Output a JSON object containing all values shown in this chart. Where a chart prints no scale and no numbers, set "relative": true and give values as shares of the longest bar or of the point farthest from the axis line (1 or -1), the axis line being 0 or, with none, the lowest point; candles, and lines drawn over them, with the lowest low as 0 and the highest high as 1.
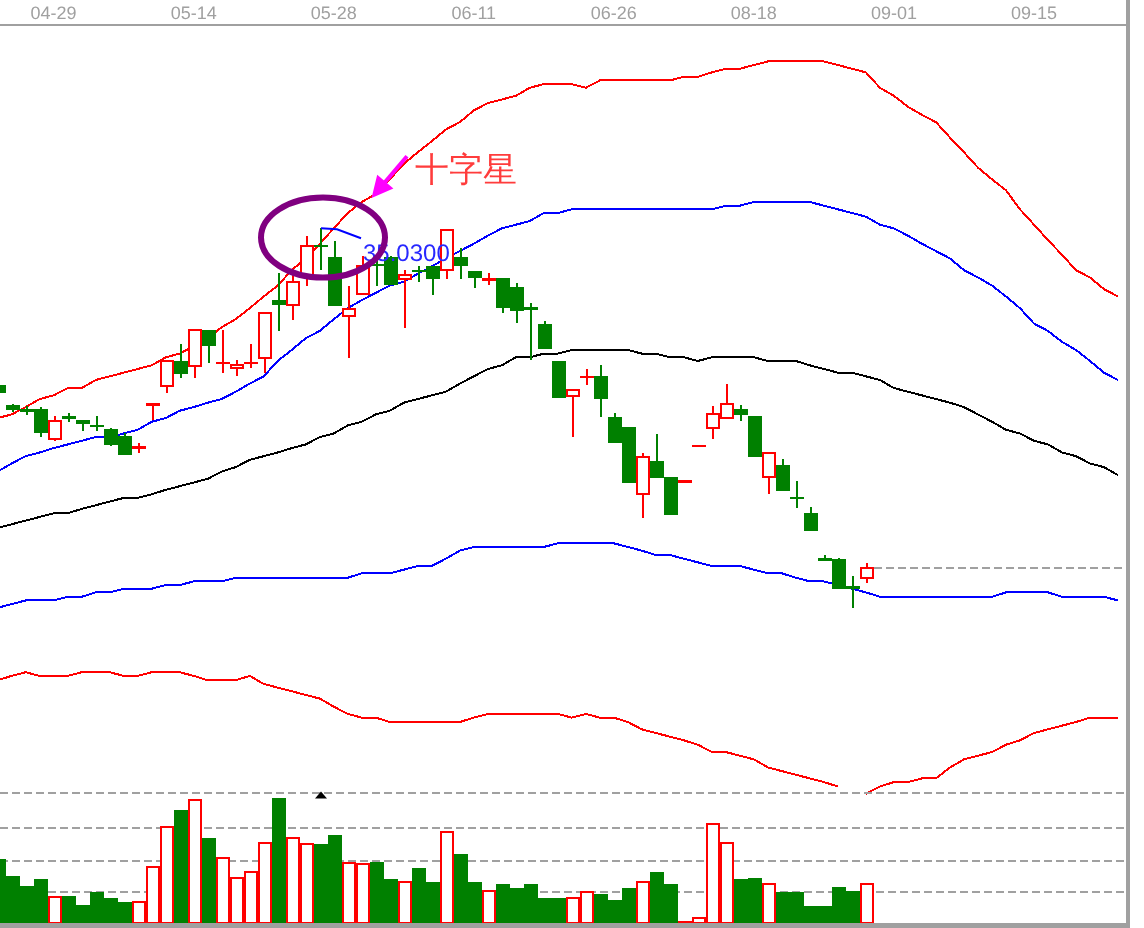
{
  "chart_data": [
    {
      "type": "candlestick",
      "relative": true,
      "tick_labels": "x",
      "categories": [
        null,
        null,
        null,
        null,
        "04-29",
        null,
        null,
        null,
        null,
        null,
        null,
        null,
        null,
        null,
        "05-14",
        null,
        null,
        null,
        null,
        null,
        null,
        null,
        null,
        null,
        "05-28",
        null,
        null,
        null,
        null,
        null,
        null,
        null,
        null,
        null,
        "06-11",
        null,
        null,
        null,
        null,
        null,
        null,
        null,
        null,
        null,
        "06-26",
        null,
        null,
        null,
        null,
        null,
        null,
        null,
        null,
        null,
        "08-18",
        null,
        null,
        null,
        null,
        null,
        null,
        null,
        null,
        null,
        "09-01",
        null,
        null,
        null,
        null,
        null,
        null,
        null,
        null,
        null,
        "09-15",
        null,
        null,
        null,
        null,
        null,
        null
      ],
      "ohlc": [
        [
          0.588,
          0.591,
          0.562,
          0.565
        ],
        [
          0.533,
          0.536,
          0.517,
          0.52
        ],
        [
          0.519,
          0.532,
          0.507,
          0.519
        ],
        [
          0.523,
          0.528,
          0.451,
          0.461
        ],
        [
          0.444,
          0.505,
          0.44,
          0.493
        ],
        [
          0.502,
          0.514,
          0.489,
          0.502
        ],
        [
          0.496,
          0.496,
          0.465,
          0.484
        ],
        [
          0.479,
          0.505,
          0.465,
          0.479
        ],
        [
          0.47,
          0.474,
          0.426,
          0.429
        ],
        [
          0.453,
          0.461,
          0.403,
          0.403
        ],
        [
          0.423,
          0.435,
          0.408,
          0.423
        ],
        [
          0.535,
          0.535,
          0.496,
          0.535
        ],
        [
          0.584,
          0.649,
          0.566,
          0.649
        ],
        [
          0.649,
          0.695,
          0.605,
          0.616
        ],
        [
          0.637,
          0.733,
          0.605,
          0.733
        ],
        [
          0.733,
          0.733,
          0.645,
          0.689
        ],
        [
          0.645,
          0.733,
          0.619,
          0.645
        ],
        [
          0.632,
          0.654,
          0.611,
          0.64
        ],
        [
          0.645,
          0.695,
          0.632,
          0.645
        ],
        [
          0.659,
          0.777,
          0.619,
          0.777
        ],
        [
          0.812,
          0.882,
          0.729,
          0.798
        ],
        [
          0.798,
          0.882,
          0.759,
          0.859
        ],
        [
          0.874,
          0.979,
          0.847,
          0.953
        ],
        [
          0.953,
          1,
          0.891,
          0.953
        ],
        [
          0.923,
          0.966,
          0.795,
          0.795
        ],
        [
          0.768,
          0.847,
          0.658,
          0.786
        ],
        [
          0.826,
          0.926,
          0.826,
          0.9
        ],
        [
          0.903,
          0.926,
          0.847,
          0.903
        ],
        [
          0.923,
          0.926,
          0.851,
          0.851
        ],
        [
          0.865,
          0.891,
          0.737,
          0.877
        ],
        [
          0.887,
          0.9,
          0.858,
          0.887
        ],
        [
          0.9,
          0.9,
          0.824,
          0.865
        ],
        [
          0.891,
          0.996,
          0.865,
          0.996
        ],
        [
          0.923,
          0.949,
          0.865,
          0.9
        ],
        [
          0.886,
          0.886,
          0.842,
          0.868
        ],
        [
          0.865,
          0.882,
          0.851,
          0.865
        ],
        [
          0.868,
          0.868,
          0.777,
          0.791
        ],
        [
          0.844,
          0.856,
          0.751,
          0.782
        ],
        [
          0.789,
          0.803,
          0.654,
          0.789
        ],
        [
          0.747,
          0.756,
          0.681,
          0.681
        ],
        [
          0.649,
          0.649,
          0.554,
          0.554
        ],
        [
          0.558,
          0.575,
          0.449,
          0.575
        ],
        [
          0.608,
          0.628,
          0.587,
          0.608
        ],
        [
          0.611,
          0.64,
          0.502,
          0.549
        ],
        [
          0.502,
          0.514,
          0.435,
          0.435
        ],
        [
          0.475,
          0.475,
          0.329,
          0.329
        ],
        [
          0.3,
          0.408,
          0.237,
          0.396
        ],
        [
          0.387,
          0.458,
          0.342,
          0.342
        ],
        [
          0.344,
          0.344,
          0.245,
          0.245
        ],
        [
          0.333,
          0.333,
          0.333,
          0.333
        ],
        [
          0.426,
          0.426,
          0.426,
          0.426
        ],
        [
          0.474,
          0.532,
          0.444,
          0.511
        ],
        [
          0.5,
          0.589,
          0.5,
          0.537
        ],
        [
          0.523,
          0.535,
          0.493,
          0.508
        ],
        [
          0.505,
          0.505,
          0.398,
          0.398
        ],
        [
          0.344,
          0.408,
          0.3,
          0.408
        ],
        [
          0.377,
          0.391,
          0.308,
          0.308
        ],
        [
          0.289,
          0.335,
          0.263,
          0.289
        ],
        [
          0.251,
          0.265,
          0.203,
          0.203
        ],
        [
          0.128,
          0.14,
          0.124,
          0.128
        ],
        [
          0.128,
          0.132,
          0.049,
          0.049
        ],
        [
          0.054,
          0.083,
          0,
          0.054
        ],
        [
          0.079,
          0.119,
          0.066,
          0.105
        ],
        null,
        null,
        null,
        null,
        null,
        null,
        null,
        null,
        null,
        null,
        null,
        null,
        null,
        null,
        null,
        null,
        null,
        null
      ],
      "colors": [
        "#008000",
        "#008000",
        "#008000",
        "#008000",
        "#ff0000",
        "#008000",
        "#008000",
        "#008000",
        "#008000",
        "#008000",
        "#ff0000",
        "#ff0000",
        "#ff0000",
        "#008000",
        "#ff0000",
        "#008000",
        "#ff0000",
        "#ff0000",
        "#ff0000",
        "#ff0000",
        "#008000",
        "#ff0000",
        "#ff0000",
        "#008000",
        "#008000",
        "#ff0000",
        "#ff0000",
        "#008000",
        "#008000",
        "#ff0000",
        "#008000",
        "#008000",
        "#ff0000",
        "#008000",
        "#008000",
        "#ff0000",
        "#008000",
        "#008000",
        "#008000",
        "#008000",
        "#008000",
        "#ff0000",
        "#ff0000",
        "#008000",
        "#008000",
        "#008000",
        "#ff0000",
        "#008000",
        "#008000",
        "#ff0000",
        "#ff0000",
        "#ff0000",
        "#ff0000",
        "#008000",
        "#008000",
        "#ff0000",
        "#008000",
        "#008000",
        "#008000",
        "#008000",
        "#008000",
        "#008000",
        "#ff0000",
        null,
        null,
        null,
        null,
        null,
        null,
        null,
        null,
        null,
        null,
        null,
        null,
        null,
        null,
        null,
        null,
        null,
        null
      ],
      "ref_lines": [
        {
          "axis": "y",
          "value": 0.105,
          "color": "#a0a0a0",
          "line_style": "dashed"
        }
      ],
      "annotations": [
        "35.0300",
        "十字星"
      ]
    },
    {
      "type": "line",
      "relative": true,
      "tick_labels": false,
      "categories": [
        null,
        null,
        null,
        null,
        null,
        null,
        null,
        null,
        null,
        null,
        null,
        null,
        null,
        null,
        null,
        null,
        null,
        null,
        null,
        null,
        null,
        null,
        null,
        null,
        null,
        null,
        null,
        null,
        null,
        null,
        null,
        null,
        null,
        null,
        null,
        null,
        null,
        null,
        null,
        null,
        null,
        null,
        null,
        null,
        null,
        null,
        null,
        null,
        null,
        null,
        null,
        null,
        null,
        null,
        null,
        null,
        null,
        null,
        null,
        null,
        null,
        null,
        null,
        null,
        null,
        null,
        null,
        null,
        null,
        null,
        null,
        null,
        null,
        null,
        null,
        null,
        null,
        null,
        null,
        null,
        null
      ],
      "series": [
        {
          "color": "#ff0000",
          "values": [
            0.513,
            0.518,
            0.528,
            0.539,
            0.544,
            0.554,
            0.554,
            0.565,
            0.57,
            0.575,
            0.58,
            0.585,
            0.596,
            0.601,
            0.611,
            0.622,
            0.637,
            0.648,
            0.663,
            0.679,
            0.694,
            0.715,
            0.731,
            0.751,
            0.772,
            0.793,
            0.808,
            0.819,
            0.839,
            0.86,
            0.876,
            0.891,
            0.907,
            0.917,
            0.933,
            0.943,
            0.948,
            0.953,
            0.964,
            0.969,
            0.969,
            0.969,
            0.964,
            0.974,
            0.974,
            0.974,
            0.974,
            0.974,
            0.974,
            0.979,
            0.979,
            0.985,
            0.99,
            0.99,
            0.995,
            1,
            1,
            1,
            1,
            1,
            0.995,
            0.99,
            0.985,
            0.964,
            0.953,
            0.938,
            0.927,
            0.917,
            0.896,
            0.876,
            0.855,
            0.839,
            0.824,
            0.798,
            0.777,
            0.756,
            0.736,
            0.715,
            0.705,
            0.689,
            0.679
          ]
        },
        {
          "color": "#0000ff",
          "values": [
            0.44,
            0.451,
            0.461,
            0.466,
            0.472,
            0.477,
            0.482,
            0.487,
            0.487,
            0.492,
            0.497,
            0.508,
            0.513,
            0.523,
            0.528,
            0.534,
            0.539,
            0.549,
            0.56,
            0.57,
            0.591,
            0.606,
            0.622,
            0.632,
            0.648,
            0.663,
            0.674,
            0.684,
            0.694,
            0.699,
            0.71,
            0.72,
            0.731,
            0.741,
            0.751,
            0.762,
            0.772,
            0.777,
            0.782,
            0.793,
            0.793,
            0.798,
            0.798,
            0.798,
            0.798,
            0.798,
            0.798,
            0.798,
            0.798,
            0.798,
            0.798,
            0.798,
            0.803,
            0.803,
            0.808,
            0.808,
            0.808,
            0.808,
            0.808,
            0.803,
            0.798,
            0.793,
            0.788,
            0.777,
            0.772,
            0.762,
            0.751,
            0.741,
            0.731,
            0.715,
            0.705,
            0.694,
            0.679,
            0.663,
            0.642,
            0.632,
            0.617,
            0.606,
            0.591,
            0.575,
            0.565
          ]
        },
        {
          "color": "#000000",
          "values": [
            0.363,
            0.368,
            0.373,
            0.378,
            0.383,
            0.383,
            0.389,
            0.394,
            0.399,
            0.404,
            0.404,
            0.409,
            0.415,
            0.42,
            0.425,
            0.43,
            0.44,
            0.446,
            0.456,
            0.461,
            0.466,
            0.472,
            0.477,
            0.487,
            0.492,
            0.503,
            0.508,
            0.518,
            0.523,
            0.534,
            0.539,
            0.544,
            0.549,
            0.56,
            0.57,
            0.58,
            0.585,
            0.596,
            0.596,
            0.601,
            0.601,
            0.606,
            0.606,
            0.606,
            0.606,
            0.606,
            0.601,
            0.601,
            0.596,
            0.596,
            0.591,
            0.596,
            0.596,
            0.596,
            0.596,
            0.591,
            0.591,
            0.591,
            0.585,
            0.58,
            0.575,
            0.575,
            0.57,
            0.565,
            0.554,
            0.549,
            0.544,
            0.539,
            0.534,
            0.528,
            0.518,
            0.508,
            0.497,
            0.492,
            0.482,
            0.477,
            0.466,
            0.461,
            0.451,
            0.446,
            0.435
          ]
        },
        {
          "color": "#0000ff",
          "values": [
            0.254,
            0.259,
            0.264,
            0.264,
            0.264,
            0.269,
            0.269,
            0.275,
            0.275,
            0.28,
            0.28,
            0.28,
            0.285,
            0.285,
            0.29,
            0.29,
            0.29,
            0.295,
            0.295,
            0.295,
            0.295,
            0.295,
            0.295,
            0.295,
            0.295,
            0.295,
            0.301,
            0.301,
            0.301,
            0.306,
            0.311,
            0.311,
            0.321,
            0.332,
            0.337,
            0.337,
            0.337,
            0.337,
            0.337,
            0.337,
            0.342,
            0.342,
            0.342,
            0.342,
            0.342,
            0.337,
            0.332,
            0.326,
            0.326,
            0.321,
            0.316,
            0.311,
            0.311,
            0.311,
            0.306,
            0.301,
            0.301,
            0.295,
            0.29,
            0.29,
            0.285,
            0.28,
            0.275,
            0.269,
            0.269,
            0.269,
            0.269,
            0.269,
            0.269,
            0.269,
            0.269,
            0.269,
            0.275,
            0.275,
            0.275,
            0.275,
            0.269,
            0.269,
            0.269,
            0.269,
            0.264
          ]
        },
        {
          "color": "#ff0000",
          "values": [
            0.155,
            0.161,
            0.166,
            0.161,
            0.161,
            0.161,
            0.166,
            0.166,
            0.166,
            0.161,
            0.161,
            0.166,
            0.166,
            0.166,
            0.161,
            0.155,
            0.155,
            0.155,
            0.161,
            0.15,
            0.145,
            0.14,
            0.135,
            0.13,
            0.119,
            0.109,
            0.104,
            0.104,
            0.098,
            0.098,
            0.098,
            0.098,
            0.098,
            0.098,
            0.104,
            0.109,
            0.109,
            0.109,
            0.109,
            0.109,
            0.109,
            0.104,
            0.109,
            0.104,
            0.104,
            0.098,
            0.088,
            0.083,
            0.078,
            0.073,
            0.067,
            0.057,
            0.057,
            0.052,
            0.047,
            0.036,
            0.031,
            0.026,
            0.021,
            0.016,
            0.01,
            null,
            0,
            0.01,
            0.016,
            0.016,
            0.021,
            0.021,
            0.036,
            0.047,
            0.052,
            0.057,
            0.067,
            0.073,
            0.083,
            0.088,
            0.093,
            0.098,
            0.104,
            0.104,
            0.104
          ]
        }
      ]
    },
    {
      "type": "bar",
      "relative": true,
      "tick_labels": false,
      "categories": [
        null,
        null,
        null,
        null,
        null,
        null,
        null,
        null,
        null,
        null,
        null,
        null,
        null,
        null,
        null,
        null,
        null,
        null,
        null,
        null,
        null,
        null,
        null,
        null,
        null,
        null,
        null,
        null,
        null,
        null,
        null,
        null,
        null,
        null,
        null,
        null,
        null,
        null,
        null,
        null,
        null,
        null,
        null,
        null,
        null,
        null,
        null,
        null,
        null,
        null,
        null,
        null,
        null,
        null,
        null,
        null,
        null,
        null,
        null,
        null,
        null,
        null,
        null,
        null,
        null,
        null,
        null,
        null,
        null,
        null,
        null,
        null,
        null,
        null,
        null,
        null,
        null,
        null,
        null,
        null,
        null
      ],
      "values": [
        0.51,
        0.38,
        0.3,
        0.35,
        0.21,
        0.22,
        0.15,
        0.25,
        0.2,
        0.17,
        0.17,
        0.45,
        0.77,
        0.9,
        0.98,
        0.68,
        0.52,
        0.36,
        0.41,
        0.64,
        1,
        0.68,
        0.63,
        0.63,
        0.7,
        0.48,
        0.47,
        0.49,
        0.35,
        0.33,
        0.44,
        0.33,
        0.73,
        0.55,
        0.33,
        0.26,
        0.31,
        0.28,
        0.31,
        0.2,
        0.2,
        0.2,
        0.25,
        0.23,
        0.19,
        0.28,
        0.33,
        0.41,
        0.31,
        0.01,
        0.04,
        0.79,
        0.64,
        0.35,
        0.36,
        0.31,
        0.25,
        0.25,
        0.14,
        0.14,
        0.29,
        0.26,
        0.31,
        null,
        null,
        null,
        null,
        null,
        null,
        null,
        null,
        null,
        null,
        null,
        null,
        null,
        null,
        null,
        null,
        null,
        null
      ],
      "colors": [
        "#008000",
        "#008000",
        "#008000",
        "#008000",
        "#ff0000",
        "#008000",
        "#008000",
        "#008000",
        "#008000",
        "#008000",
        "#ff0000",
        "#ff0000",
        "#ff0000",
        "#008000",
        "#ff0000",
        "#008000",
        "#ff0000",
        "#ff0000",
        "#ff0000",
        "#ff0000",
        "#008000",
        "#ff0000",
        "#ff0000",
        "#008000",
        "#008000",
        "#ff0000",
        "#ff0000",
        "#008000",
        "#008000",
        "#ff0000",
        "#008000",
        "#008000",
        "#ff0000",
        "#008000",
        "#008000",
        "#ff0000",
        "#008000",
        "#008000",
        "#008000",
        "#008000",
        "#008000",
        "#ff0000",
        "#ff0000",
        "#008000",
        "#008000",
        "#008000",
        "#ff0000",
        "#008000",
        "#008000",
        "#ff0000",
        "#ff0000",
        "#ff0000",
        "#ff0000",
        "#008000",
        "#008000",
        "#ff0000",
        "#008000",
        "#008000",
        "#008000",
        "#008000",
        "#008000",
        "#008000",
        "#ff0000",
        null,
        null,
        null,
        null,
        null,
        null,
        null,
        null,
        null,
        null,
        null,
        null,
        null,
        null,
        null,
        null,
        null,
        null
      ],
      "ref_lines": [
        {
          "axis": "y",
          "value": 1.04,
          "color": "#a0a0a0",
          "line_style": "dashed"
        },
        {
          "axis": "y",
          "value": 0.76,
          "color": "#a0a0a0",
          "line_style": "dashed"
        },
        {
          "axis": "y",
          "value": 0.5,
          "color": "#a0a0a0",
          "line_style": "dashed"
        },
        {
          "axis": "y",
          "value": 0.25,
          "color": "#a0a0a0",
          "line_style": "dashed"
        }
      ]
    }
  ]
}
